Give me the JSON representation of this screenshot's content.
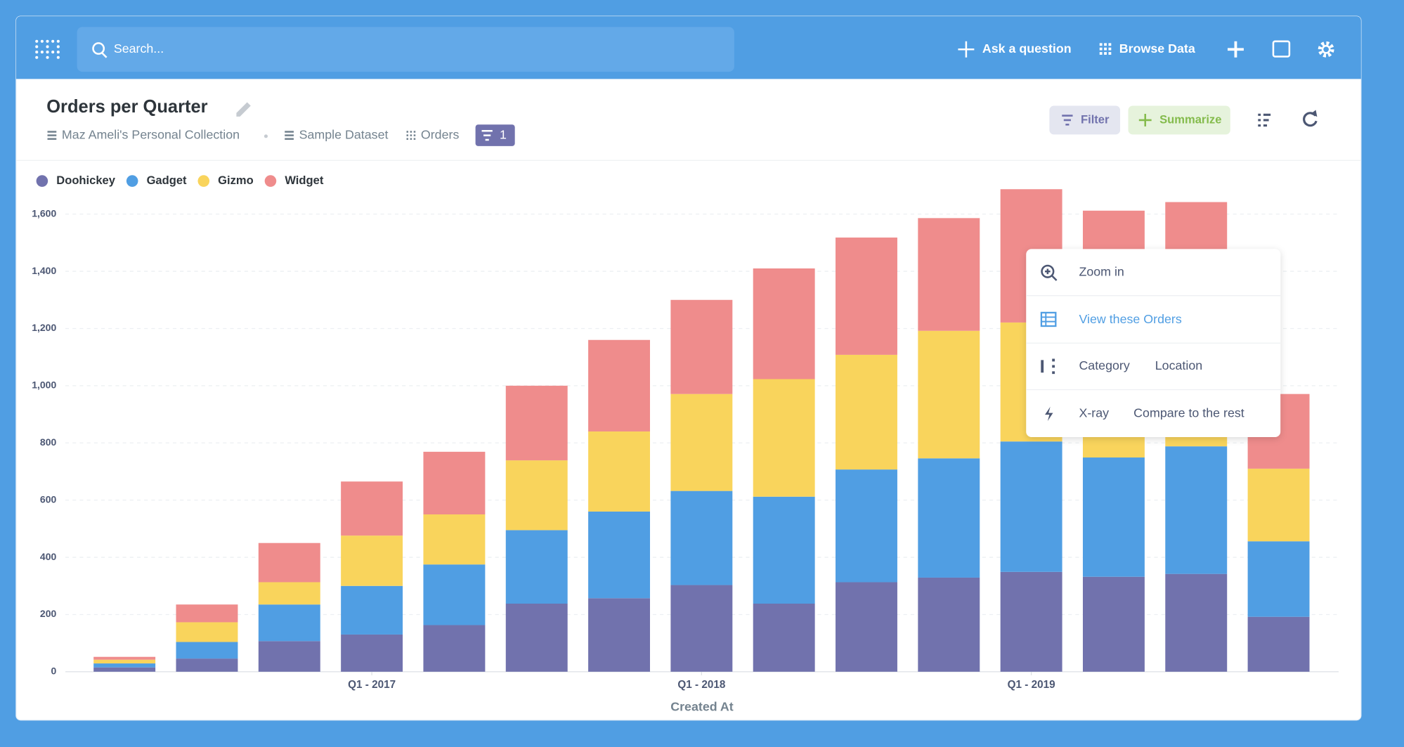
{
  "ui": {
    "search": "Search...",
    "ask": "Ask a question",
    "browse": "Browse Data",
    "collection": "Maz Ameli's Personal Collection",
    "database": "Sample Dataset",
    "table": "Orders",
    "filter_count": 1,
    "filter": "Filter",
    "summarize": "Summarize",
    "popup": {
      "zoom": "Zoom in",
      "view": "View these Orders",
      "breakout": [
        "Category",
        "Location"
      ],
      "xray": "X-ray",
      "compare": "Compare to the rest"
    }
  },
  "chart_data": {
    "type": "stacked_bar",
    "title": "Orders per Quarter",
    "xlabel": "Created At",
    "categories": [
      null,
      null,
      null,
      "Q1 - 2017",
      null,
      null,
      null,
      "Q1 - 2018",
      null,
      null,
      null,
      "Q1 - 2019",
      null,
      null,
      null
    ],
    "series": [
      {
        "name": "Doohickey",
        "color": "#7172ad",
        "values": [
          15,
          46,
          107,
          130,
          163,
          238,
          257,
          303,
          238,
          313,
          329,
          349,
          332,
          342,
          192
        ]
      },
      {
        "name": "Gadget",
        "color": "#509ee3",
        "values": [
          14,
          58,
          128,
          170,
          212,
          257,
          303,
          329,
          374,
          394,
          417,
          456,
          417,
          446,
          264
        ]
      },
      {
        "name": "Gizmo",
        "color": "#f9d45c",
        "values": [
          13,
          69,
          78,
          176,
          175,
          244,
          280,
          339,
          411,
          401,
          446,
          416,
          440,
          385,
          254
        ]
      },
      {
        "name": "Widget",
        "color": "#ef8c8c",
        "values": [
          10,
          62,
          137,
          189,
          219,
          261,
          320,
          329,
          387,
          410,
          394,
          466,
          423,
          469,
          261
        ]
      }
    ],
    "ylim": [
      0,
      1700
    ],
    "yticks": [
      0,
      200,
      400,
      600,
      800,
      {
        "value": 1000,
        "label": "1,000"
      },
      {
        "value": 1200,
        "label": "1,200"
      },
      {
        "value": 1400,
        "label": "1,400"
      },
      {
        "value": 1600,
        "label": "1,600"
      }
    ],
    "grid": true,
    "legend": "top-left"
  }
}
